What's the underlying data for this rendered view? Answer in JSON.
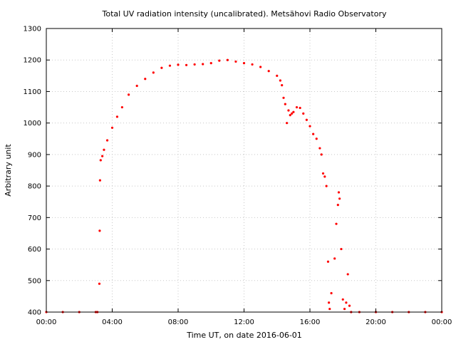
{
  "chart_data": {
    "type": "scatter",
    "title": "Total UV radiation intensity (uncalibrated). Metsähovi Radio Observatory",
    "xlabel": "Time UT, on date 2016-06-01",
    "ylabel": "Arbitrary unit",
    "x_unit": "hours UT",
    "xlim": [
      0,
      24
    ],
    "ylim": [
      400,
      1300
    ],
    "x_ticks": [
      0,
      4,
      8,
      12,
      16,
      20,
      24
    ],
    "x_tick_labels": [
      "00:00",
      "04:00",
      "08:00",
      "12:00",
      "16:00",
      "20:00",
      "00:00"
    ],
    "y_ticks": [
      400,
      500,
      600,
      700,
      800,
      900,
      1000,
      1100,
      1200,
      1300
    ],
    "y_tick_labels": [
      "400",
      "500",
      "600",
      "700",
      "800",
      "900",
      "1000",
      "1100",
      "1200",
      "1300"
    ],
    "grid": true,
    "marker_color": "#ff0000",
    "series": [
      {
        "points": [
          [
            0.0,
            400
          ],
          [
            1.0,
            400
          ],
          [
            2.0,
            400
          ],
          [
            3.0,
            400
          ],
          [
            3.1,
            400
          ],
          [
            3.22,
            490
          ],
          [
            3.24,
            658
          ],
          [
            3.26,
            818
          ],
          [
            3.3,
            882
          ],
          [
            3.4,
            895
          ],
          [
            3.5,
            915
          ],
          [
            3.7,
            945
          ],
          [
            4.0,
            985
          ],
          [
            4.3,
            1020
          ],
          [
            4.6,
            1050
          ],
          [
            5.0,
            1090
          ],
          [
            5.5,
            1118
          ],
          [
            6.0,
            1140
          ],
          [
            6.5,
            1160
          ],
          [
            7.0,
            1175
          ],
          [
            7.5,
            1182
          ],
          [
            8.0,
            1185
          ],
          [
            8.5,
            1184
          ],
          [
            9.0,
            1186
          ],
          [
            9.5,
            1187
          ],
          [
            10.0,
            1190
          ],
          [
            10.5,
            1198
          ],
          [
            11.0,
            1200
          ],
          [
            11.5,
            1195
          ],
          [
            12.0,
            1190
          ],
          [
            12.5,
            1186
          ],
          [
            13.0,
            1178
          ],
          [
            13.5,
            1165
          ],
          [
            14.0,
            1150
          ],
          [
            14.2,
            1135
          ],
          [
            14.3,
            1120
          ],
          [
            14.4,
            1080
          ],
          [
            14.5,
            1060
          ],
          [
            14.6,
            1000
          ],
          [
            14.7,
            1040
          ],
          [
            14.8,
            1025
          ],
          [
            14.9,
            1030
          ],
          [
            15.0,
            1035
          ],
          [
            15.2,
            1050
          ],
          [
            15.4,
            1048
          ],
          [
            15.6,
            1030
          ],
          [
            15.8,
            1010
          ],
          [
            16.0,
            990
          ],
          [
            16.2,
            965
          ],
          [
            16.4,
            950
          ],
          [
            16.6,
            920
          ],
          [
            16.7,
            900
          ],
          [
            16.8,
            840
          ],
          [
            16.9,
            830
          ],
          [
            17.0,
            800
          ],
          [
            17.1,
            560
          ],
          [
            17.15,
            430
          ],
          [
            17.2,
            410
          ],
          [
            17.3,
            460
          ],
          [
            17.5,
            570
          ],
          [
            17.6,
            680
          ],
          [
            17.7,
            740
          ],
          [
            17.75,
            780
          ],
          [
            17.8,
            760
          ],
          [
            17.9,
            600
          ],
          [
            18.0,
            440
          ],
          [
            18.1,
            410
          ],
          [
            18.2,
            430
          ],
          [
            18.3,
            520
          ],
          [
            18.4,
            420
          ],
          [
            18.5,
            400
          ],
          [
            19.0,
            400
          ],
          [
            20.0,
            400
          ],
          [
            21.0,
            400
          ],
          [
            22.0,
            400
          ],
          [
            23.0,
            400
          ],
          [
            24.0,
            400
          ]
        ]
      }
    ]
  }
}
